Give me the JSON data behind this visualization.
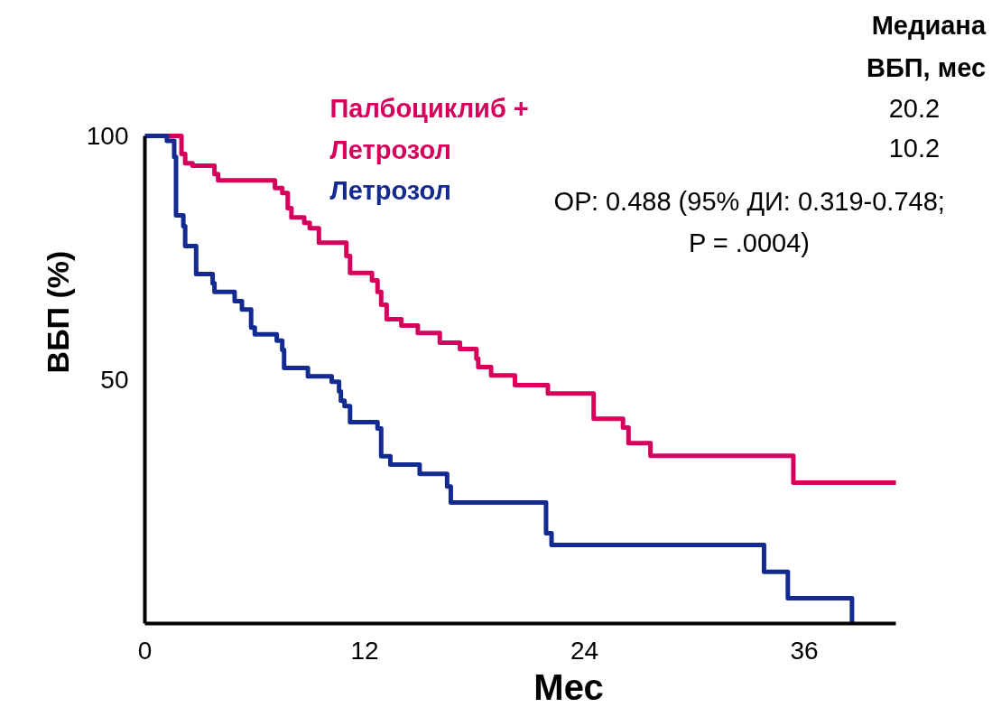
{
  "chart_data": {
    "type": "step",
    "xlabel": "Мес",
    "ylabel": "ВБП (%)",
    "xlim": [
      0,
      41
    ],
    "ylim": [
      0,
      100
    ],
    "xticks": [
      0,
      12,
      24,
      36
    ],
    "yticks": [
      50,
      100
    ],
    "grid": false,
    "marker": "none",
    "line_style": "solid",
    "series": [
      {
        "name": "Палбоциклиб +\nЛетрозол",
        "color": "#d6005c",
        "x": [
          0,
          2.0,
          2.2,
          2.6,
          3.8,
          4.0,
          7.1,
          7.5,
          7.8,
          8.0,
          8.7,
          9.0,
          9.5,
          11.0,
          11.2,
          12.4,
          12.7,
          12.9,
          13.2,
          14.0,
          14.9,
          16.1,
          17.2,
          18.1,
          18.2,
          18.9,
          20.2,
          22.0,
          24.5,
          26.1,
          26.4,
          27.6,
          35.4,
          41.0
        ],
        "values": [
          100,
          96.3,
          94.4,
          93.9,
          92.2,
          90.9,
          89.3,
          88.3,
          85.2,
          83.3,
          82.2,
          81.1,
          78.1,
          75.4,
          71.9,
          70.4,
          68,
          65.4,
          62.4,
          61.1,
          59.6,
          57.6,
          56.3,
          54.3,
          52.6,
          50.9,
          48.9,
          47.2,
          42,
          40.2,
          37,
          34.4,
          28.9,
          28.9
        ]
      },
      {
        "name": "Летрозол",
        "color": "#132a91",
        "x": [
          0,
          1.2,
          1.6,
          1.7,
          2.1,
          2.2,
          2.8,
          3.7,
          3.8,
          4.9,
          5.3,
          5.8,
          6.0,
          7.2,
          7.5,
          7.6,
          8.9,
          10.2,
          10.6,
          10.7,
          10.9,
          11.2,
          12.7,
          12.9,
          13.4,
          15.0,
          16.5,
          16.7,
          21.9,
          22.2,
          33.8,
          35.1,
          38.6
        ],
        "values": [
          100,
          99,
          95.7,
          83.7,
          81.5,
          77.4,
          71.7,
          69.8,
          68,
          66.1,
          64.4,
          60.7,
          59.3,
          58,
          56.1,
          52.4,
          50.7,
          49.6,
          47.6,
          45.7,
          44.6,
          41.3,
          40,
          34.3,
          32.6,
          30.7,
          28.1,
          24.8,
          18.5,
          16.1,
          10.6,
          5.2,
          0
        ]
      }
    ],
    "annotations": [
      "Медиана\nВБП, мес",
      "20.2",
      "10.2",
      "ОР: 0.488 (95% ДИ: 0.319-0.748;\nP = .0004)"
    ]
  }
}
